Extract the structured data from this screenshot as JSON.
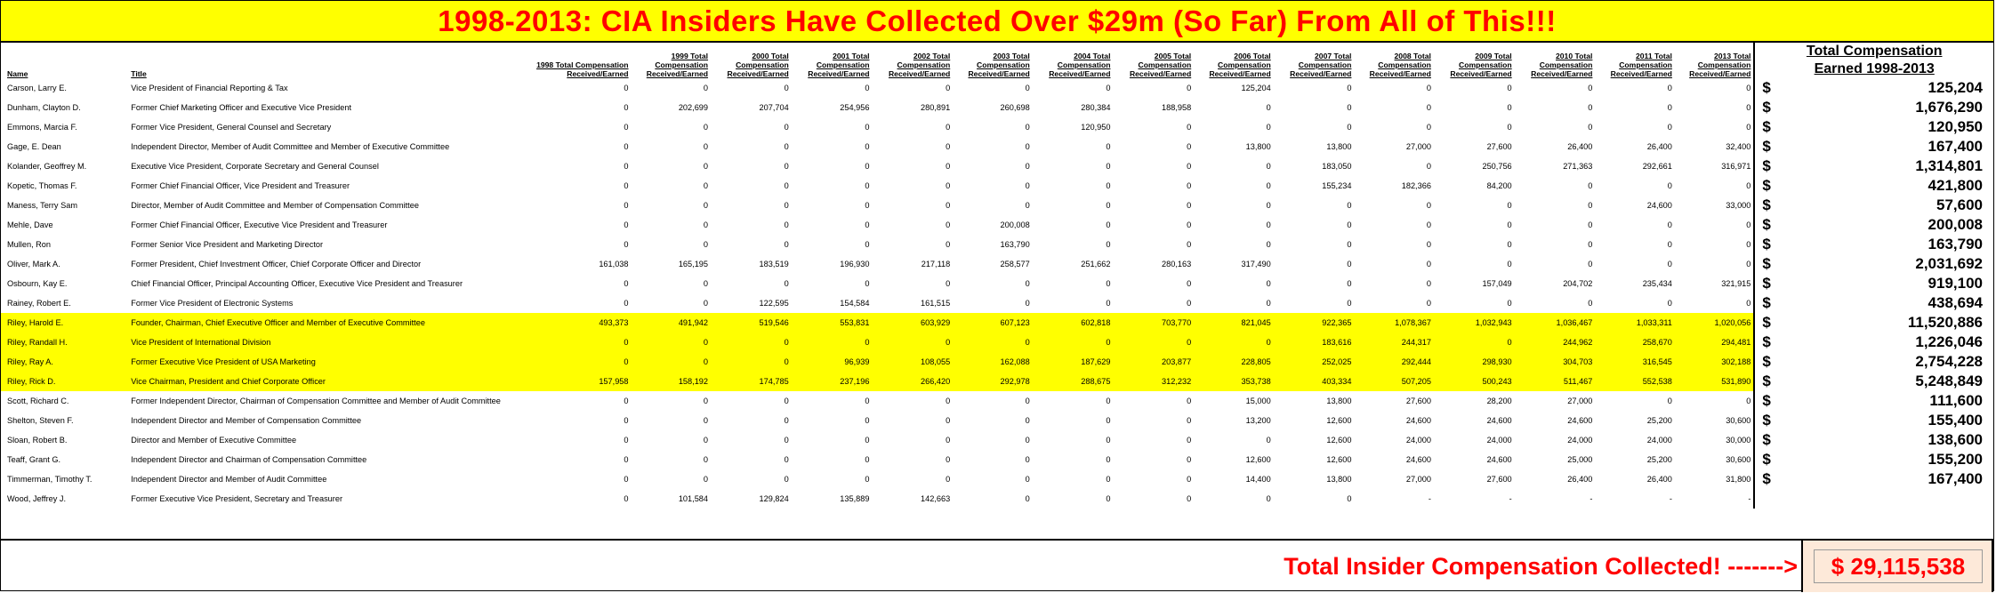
{
  "title": "1998-2013: CIA Insiders Have Collected Over $29m (So Far) From All of This!!!",
  "headers": {
    "name": "Name",
    "title": "Title",
    "years": [
      "1998 Total Compensation Received/Earned",
      "1999 Total Compensation Received/Earned",
      "2000 Total Compensation Received/Earned",
      "2001 Total Compensation Received/Earned",
      "2002 Total Compensation Received/Earned",
      "2003 Total Compensation Received/Earned",
      "2004 Total Compensation Received/Earned",
      "2005 Total Compensation Received/Earned",
      "2006 Total Compensation Received/Earned",
      "2007 Total Compensation Received/Earned",
      "2008 Total Compensation Received/Earned",
      "2009 Total Compensation Received/Earned",
      "2010 Total Compensation Received/Earned",
      "2011 Total Compensation Received/Earned",
      "2013 Total Compensation Received/Earned"
    ],
    "total_line1": "Total Compensation",
    "total_line2": "Earned 1998-2013"
  },
  "rows": [
    {
      "name": "Carson, Larry E.",
      "title": "Vice President of Financial Reporting & Tax",
      "values": [
        "0",
        "0",
        "0",
        "0",
        "0",
        "0",
        "0",
        "0",
        "125,204",
        "0",
        "0",
        "0",
        "0",
        "0",
        "0"
      ],
      "total": "125,204",
      "highlight": false
    },
    {
      "name": "Dunham, Clayton D.",
      "title": "Former Chief Marketing Officer and Executive Vice President",
      "values": [
        "0",
        "202,699",
        "207,704",
        "254,956",
        "280,891",
        "260,698",
        "280,384",
        "188,958",
        "0",
        "0",
        "0",
        "0",
        "0",
        "0",
        "0"
      ],
      "total": "1,676,290",
      "highlight": false
    },
    {
      "name": "Emmons, Marcia F.",
      "title": "Former Vice President, General Counsel and Secretary",
      "values": [
        "0",
        "0",
        "0",
        "0",
        "0",
        "0",
        "120,950",
        "0",
        "0",
        "0",
        "0",
        "0",
        "0",
        "0",
        "0"
      ],
      "total": "120,950",
      "highlight": false
    },
    {
      "name": "Gage, E. Dean",
      "title": "Independent Director, Member of Audit Committee and Member of Executive Committee",
      "values": [
        "0",
        "0",
        "0",
        "0",
        "0",
        "0",
        "0",
        "0",
        "13,800",
        "13,800",
        "27,000",
        "27,600",
        "26,400",
        "26,400",
        "32,400"
      ],
      "total": "167,400",
      "highlight": false
    },
    {
      "name": "Kolander, Geoffrey M.",
      "title": "Executive Vice President, Corporate Secretary and General Counsel",
      "values": [
        "0",
        "0",
        "0",
        "0",
        "0",
        "0",
        "0",
        "0",
        "0",
        "183,050",
        "0",
        "250,756",
        "271,363",
        "292,661",
        "316,971"
      ],
      "total": "1,314,801",
      "highlight": false
    },
    {
      "name": "Kopetic, Thomas F.",
      "title": "Former Chief Financial Officer, Vice President and Treasurer",
      "values": [
        "0",
        "0",
        "0",
        "0",
        "0",
        "0",
        "0",
        "0",
        "0",
        "155,234",
        "182,366",
        "84,200",
        "0",
        "0",
        "0"
      ],
      "total": "421,800",
      "highlight": false
    },
    {
      "name": "Maness, Terry Sam",
      "title": "Director, Member of Audit Committee and Member of Compensation Committee",
      "values": [
        "0",
        "0",
        "0",
        "0",
        "0",
        "0",
        "0",
        "0",
        "0",
        "0",
        "0",
        "0",
        "0",
        "24,600",
        "33,000"
      ],
      "total": "57,600",
      "highlight": false
    },
    {
      "name": "Mehle, Dave",
      "title": "Former Chief Financial Officer, Executive Vice President and Treasurer",
      "values": [
        "0",
        "0",
        "0",
        "0",
        "0",
        "200,008",
        "0",
        "0",
        "0",
        "0",
        "0",
        "0",
        "0",
        "0",
        "0"
      ],
      "total": "200,008",
      "highlight": false
    },
    {
      "name": "Mullen, Ron",
      "title": "Former Senior Vice President and Marketing Director",
      "values": [
        "0",
        "0",
        "0",
        "0",
        "0",
        "163,790",
        "0",
        "0",
        "0",
        "0",
        "0",
        "0",
        "0",
        "0",
        "0"
      ],
      "total": "163,790",
      "highlight": false
    },
    {
      "name": "Oliver, Mark A.",
      "title": "Former President, Chief Investment Officer, Chief Corporate Officer and Director",
      "values": [
        "161,038",
        "165,195",
        "183,519",
        "196,930",
        "217,118",
        "258,577",
        "251,662",
        "280,163",
        "317,490",
        "0",
        "0",
        "0",
        "0",
        "0",
        "0"
      ],
      "total": "2,031,692",
      "highlight": false
    },
    {
      "name": "Osbourn, Kay E.",
      "title": "Chief Financial Officer, Principal Accounting Officer, Executive Vice President and Treasurer",
      "values": [
        "0",
        "0",
        "0",
        "0",
        "0",
        "0",
        "0",
        "0",
        "0",
        "0",
        "0",
        "157,049",
        "204,702",
        "235,434",
        "321,915"
      ],
      "total": "919,100",
      "highlight": false
    },
    {
      "name": "Rainey, Robert E.",
      "title": "Former Vice President of Electronic Systems",
      "values": [
        "0",
        "0",
        "122,595",
        "154,584",
        "161,515",
        "0",
        "0",
        "0",
        "0",
        "0",
        "0",
        "0",
        "0",
        "0",
        "0"
      ],
      "total": "438,694",
      "highlight": false
    },
    {
      "name": "Riley, Harold E.",
      "title": "Founder, Chairman, Chief Executive Officer and Member of Executive Committee",
      "values": [
        "493,373",
        "491,942",
        "519,546",
        "553,831",
        "603,929",
        "607,123",
        "602,818",
        "703,770",
        "821,045",
        "922,365",
        "1,078,367",
        "1,032,943",
        "1,036,467",
        "1,033,311",
        "1,020,056"
      ],
      "total": "11,520,886",
      "highlight": true
    },
    {
      "name": "Riley, Randall H.",
      "title": "Vice President of International Division",
      "values": [
        "0",
        "0",
        "0",
        "0",
        "0",
        "0",
        "0",
        "0",
        "0",
        "183,616",
        "244,317",
        "0",
        "244,962",
        "258,670",
        "294,481"
      ],
      "total": "1,226,046",
      "highlight": true
    },
    {
      "name": "Riley, Ray A.",
      "title": "Former Executive Vice President of USA Marketing",
      "values": [
        "0",
        "0",
        "0",
        "96,939",
        "108,055",
        "162,088",
        "187,629",
        "203,877",
        "228,805",
        "252,025",
        "292,444",
        "298,930",
        "304,703",
        "316,545",
        "302,188"
      ],
      "total": "2,754,228",
      "highlight": true
    },
    {
      "name": "Riley, Rick D.",
      "title": "Vice Chairman, President and Chief Corporate Officer",
      "values": [
        "157,958",
        "158,192",
        "174,785",
        "237,196",
        "266,420",
        "292,978",
        "288,675",
        "312,232",
        "353,738",
        "403,334",
        "507,205",
        "500,243",
        "511,467",
        "552,538",
        "531,890"
      ],
      "total": "5,248,849",
      "highlight": true
    },
    {
      "name": "Scott, Richard C.",
      "title": "Former Independent Director, Chairman of Compensation Committee and Member of Audit Committee",
      "values": [
        "0",
        "0",
        "0",
        "0",
        "0",
        "0",
        "0",
        "0",
        "15,000",
        "13,800",
        "27,600",
        "28,200",
        "27,000",
        "0",
        "0"
      ],
      "total": "111,600",
      "highlight": false
    },
    {
      "name": "Shelton, Steven F.",
      "title": "Independent Director and Member of Compensation Committee",
      "values": [
        "0",
        "0",
        "0",
        "0",
        "0",
        "0",
        "0",
        "0",
        "13,200",
        "12,600",
        "24,600",
        "24,600",
        "24,600",
        "25,200",
        "30,600"
      ],
      "total": "155,400",
      "highlight": false
    },
    {
      "name": "Sloan, Robert B.",
      "title": "Director and Member of Executive Committee",
      "values": [
        "0",
        "0",
        "0",
        "0",
        "0",
        "0",
        "0",
        "0",
        "0",
        "12,600",
        "24,000",
        "24,000",
        "24,000",
        "24,000",
        "30,000"
      ],
      "total": "138,600",
      "highlight": false
    },
    {
      "name": "Teaff, Grant G.",
      "title": "Independent Director and Chairman of Compensation Committee",
      "values": [
        "0",
        "0",
        "0",
        "0",
        "0",
        "0",
        "0",
        "0",
        "12,600",
        "12,600",
        "24,600",
        "24,600",
        "25,000",
        "25,200",
        "30,600"
      ],
      "total": "155,200",
      "highlight": false
    },
    {
      "name": "Timmerman, Timothy T.",
      "title": "Independent Director and Member of Audit Committee",
      "values": [
        "0",
        "0",
        "0",
        "0",
        "0",
        "0",
        "0",
        "0",
        "14,400",
        "13,800",
        "27,000",
        "27,600",
        "26,400",
        "26,400",
        "31,800"
      ],
      "total": "167,400",
      "highlight": false
    },
    {
      "name": "Wood, Jeffrey J.",
      "title": "Former Executive Vice President, Secretary and Treasurer",
      "values": [
        "0",
        "101,584",
        "129,824",
        "135,889",
        "142,663",
        "0",
        "0",
        "0",
        "0",
        "0",
        "-",
        "-",
        "-",
        "-",
        "-"
      ],
      "total": "",
      "highlight": false
    }
  ],
  "dollar_sign": "$",
  "footer": {
    "label": "Total Insider Compensation Collected!  ------->",
    "total": "$ 29,115,538"
  },
  "colors": {
    "highlight": "#ffff00",
    "title_text": "#ff0000",
    "footer_box": "#fde9d9"
  }
}
